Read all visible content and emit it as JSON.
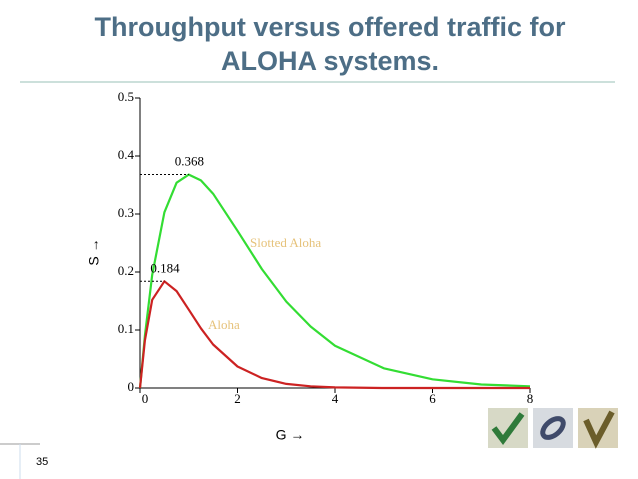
{
  "slide_number": "35",
  "chart_data": {
    "type": "line",
    "title": "Throughput versus offered traffic for ALOHA systems.",
    "x_label": "G →",
    "y_label": "S →",
    "x": [
      0,
      0.1,
      0.25,
      0.5,
      0.75,
      1,
      1.25,
      1.5,
      2,
      2.5,
      3,
      3.5,
      4,
      5,
      6,
      7,
      8
    ],
    "series": [
      {
        "name": "Slotted Aloha",
        "color": "#33dd33",
        "values": [
          0,
          0.09,
          0.195,
          0.303,
          0.354,
          0.368,
          0.358,
          0.335,
          0.271,
          0.205,
          0.149,
          0.106,
          0.073,
          0.034,
          0.015,
          0.006,
          0.003
        ]
      },
      {
        "name": "Aloha",
        "color": "#cc2222",
        "values": [
          0,
          0.082,
          0.152,
          0.184,
          0.167,
          0.135,
          0.103,
          0.075,
          0.037,
          0.017,
          0.007,
          0.003,
          0.001,
          0,
          0,
          0,
          0
        ]
      }
    ],
    "label_color": "#e6c27a",
    "annotations": [
      {
        "text": "0.368",
        "x": 1,
        "y": 0.368
      },
      {
        "text": "0.184",
        "x": 0.5,
        "y": 0.184
      }
    ],
    "xlim": [
      0,
      8
    ],
    "ylim": [
      0,
      0.5
    ],
    "xticks": [
      0,
      2,
      4,
      6,
      8
    ],
    "yticks": [
      0,
      0.1,
      0.2,
      0.3,
      0.4,
      0.5
    ]
  }
}
